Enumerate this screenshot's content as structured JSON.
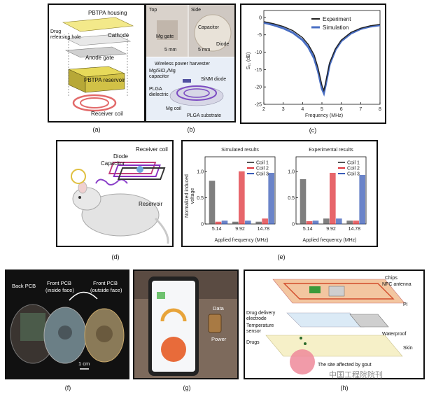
{
  "panels": {
    "a": {
      "caption": "(a)",
      "labels": {
        "housing": "PBTPA housing",
        "drug_hole_1": "Drug",
        "drug_hole_2": "releasing hole",
        "cathode": "Cathode",
        "anode": "Anode gate",
        "reservoir": "PBTPA reservoir",
        "coil": "Receiver coil"
      }
    },
    "b": {
      "caption": "(b)",
      "labels": {
        "top": "Top",
        "side": "Side",
        "mg_gate": "Mg gate",
        "capacitor": "Capacitor",
        "diode": "Diode",
        "scale_1": "5 mm",
        "scale_2": "5 mm",
        "title": "Wireless power harvester",
        "mg_cap_1": "Mg/SiO₂/Mg",
        "mg_cap_2": "capacitor",
        "sinm": "SiNM diode",
        "plga_1": "PLGA",
        "plga_2": "dielectric",
        "mg_coil": "Mg coil",
        "substrate": "PLGA substrate"
      }
    },
    "c": {
      "caption": "(c)",
      "legend": [
        "Experiment",
        "Simulation"
      ],
      "xlabel": "Frequency (MHz)",
      "ylabel": "S₁₁ (dB)",
      "xticks": [
        "2",
        "3",
        "4",
        "5",
        "6",
        "7",
        "8"
      ],
      "yticks": [
        "0",
        "-5",
        "-10",
        "-15",
        "-20",
        "-25"
      ]
    },
    "d": {
      "caption": "(d)",
      "labels": {
        "receiver": "Receiver coil",
        "diode": "Diode",
        "capacitor": "Capacitor",
        "reservoir": "Reservoir"
      }
    },
    "e": {
      "caption": "(e)",
      "ylabel_1": "Normalized induced",
      "ylabel_2": "voltage",
      "xlabel_left": "Applied frequency (MHz)",
      "xlabel_right": "Applied frequency (MHz)",
      "yticks": [
        "0",
        "0.5",
        "1.0"
      ]
    },
    "f": {
      "caption": "(f)",
      "labels": {
        "back": "Back PCB",
        "front_in_1": "Front PCB",
        "front_in_2": "(inside face)",
        "front_out_1": "Front PCB",
        "front_out_2": "(outside face)",
        "scale": "1 cm"
      }
    },
    "g": {
      "caption": "(g)",
      "labels": {
        "data": "Data",
        "power": "Power"
      }
    },
    "h": {
      "caption": "(h)",
      "labels": {
        "chips": "Chips",
        "nfc": "NFC antenna",
        "pi": "PI",
        "drug_1": "Drug delivery",
        "drug_2": "electrode",
        "temp_1": "Temperature",
        "temp_2": "sensor",
        "waterproof": "Waterproof",
        "drugs": "Drugs",
        "skin": "Skin",
        "gout": "The site affected by gout"
      }
    }
  },
  "watermark": "中国工程院院刊",
  "colors": {
    "experiment": "#222222",
    "simulation": "#4a6fc4",
    "coil1": "#555555",
    "coil2": "#e0333a",
    "coil3": "#3a5cb8"
  },
  "chart_data": [
    {
      "type": "line",
      "panel": "c",
      "xlabel": "Frequency (MHz)",
      "ylabel": "S11 (dB)",
      "xlim": [
        2,
        8
      ],
      "ylim": [
        -25,
        2
      ],
      "series": [
        {
          "name": "Experiment",
          "x": [
            2,
            2.5,
            3,
            3.5,
            4,
            4.3,
            4.6,
            4.8,
            5.0,
            5.1,
            5.2,
            5.4,
            5.7,
            6,
            6.5,
            7,
            7.5,
            8
          ],
          "y": [
            -1.2,
            -1.8,
            -2.6,
            -3.8,
            -5.8,
            -7.8,
            -10.8,
            -14.5,
            -19.5,
            -21,
            -18.5,
            -13,
            -9,
            -6.5,
            -4.3,
            -3.1,
            -2.4,
            -2
          ]
        },
        {
          "name": "Simulation",
          "x": [
            2,
            2.5,
            3,
            3.5,
            4,
            4.3,
            4.6,
            4.8,
            5.0,
            5.1,
            5.2,
            5.4,
            5.7,
            6,
            6.5,
            7,
            7.5,
            8
          ],
          "y": [
            -1.5,
            -2.2,
            -3.1,
            -4.4,
            -6.5,
            -8.6,
            -11.8,
            -15.5,
            -20.5,
            -21.8,
            -19.2,
            -13.5,
            -9.3,
            -6.8,
            -4.6,
            -3.3,
            -2.6,
            -2.2
          ]
        }
      ]
    },
    {
      "type": "bar",
      "panel": "e",
      "title": "Simulated results",
      "categories": [
        "5.14",
        "9.92",
        "14.78"
      ],
      "series": [
        {
          "name": "Coil 1",
          "values": [
            0.82,
            0.04,
            0.04
          ]
        },
        {
          "name": "Coil 2",
          "values": [
            0.04,
            1.0,
            0.1
          ]
        },
        {
          "name": "Coil 3",
          "values": [
            0.06,
            0.06,
            0.97
          ]
        }
      ],
      "ylim": [
        0,
        1.2
      ]
    },
    {
      "type": "bar",
      "panel": "e",
      "title": "Experimental results",
      "categories": [
        "5.14",
        "9.92",
        "14.78"
      ],
      "series": [
        {
          "name": "Coil 1",
          "values": [
            0.85,
            0.1,
            0.06
          ]
        },
        {
          "name": "Coil 2",
          "values": [
            0.05,
            0.97,
            0.06
          ]
        },
        {
          "name": "Coil 3",
          "values": [
            0.06,
            0.1,
            0.93
          ]
        }
      ],
      "ylim": [
        0,
        1.2
      ]
    }
  ]
}
